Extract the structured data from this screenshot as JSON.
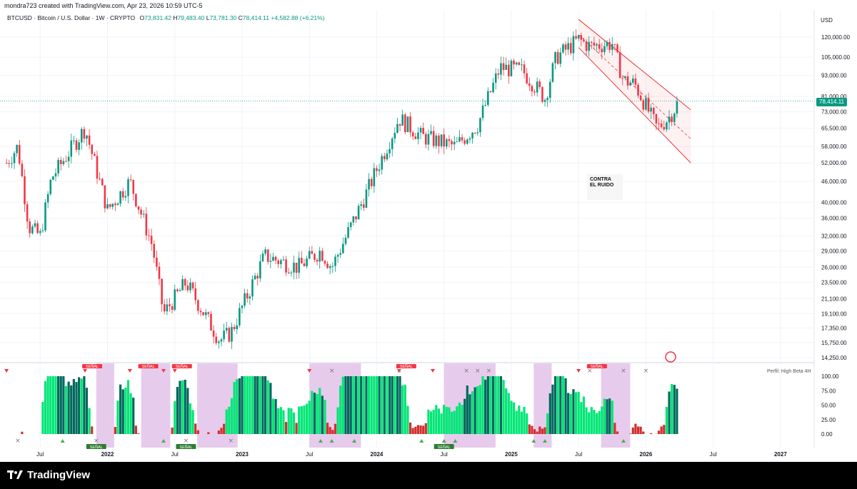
{
  "header": {
    "text": "mondra723 created with TradingView.com, Apr 23, 2026 10:59 UTC-5"
  },
  "legend": {
    "symbol": "BTCUSD · Bitcoin / U.S. Dollar · 1W · CRYPTO",
    "open_label": "O",
    "open": "73,831.42",
    "high_label": "H",
    "high": "79,483.40",
    "low_label": "L",
    "low": "73,781.30",
    "close_label": "C",
    "close": "78,414.11",
    "change": "+4,582.88 (+6.21%)"
  },
  "currency": "USD",
  "last_price": "78,414.11",
  "indicator_label": "Perfil: High Beta 4H",
  "watermark": {
    "line1": "CONTRA",
    "line2": "EL RUIDO"
  },
  "footer": {
    "brand": "TradingView"
  },
  "colors": {
    "up": "#089981",
    "down": "#f23645",
    "channel": "#e53935",
    "highlight": "#e1bee7",
    "osc_dark": "#00695c",
    "osc_light": "#00e676",
    "osc_red": "#d32f2f"
  },
  "chart_data": [
    {
      "type": "candlestick",
      "title": "BTCUSD · Bitcoin / U.S. Dollar · 1W · CRYPTO",
      "y_scale": "log",
      "y_ticks": [
        "120,000.00",
        "105,000.00",
        "93,000.00",
        "81,000.00",
        "73,000.00",
        "65,500.00",
        "58,000.00",
        "52,000.00",
        "46,000.00",
        "40,000.00",
        "36,000.00",
        "32,000.00",
        "29,000.00",
        "26,000.00",
        "23,500.00",
        "21,100.00",
        "19,100.00",
        "17,350.00",
        "15,750.00",
        "14,250.00"
      ],
      "x_ticks": [
        "Jul",
        "2022",
        "Jul",
        "2023",
        "Jul",
        "2024",
        "Jul",
        "2025",
        "Jul",
        "2026",
        "Jul",
        "2027"
      ],
      "anchors": [
        {
          "date": "2021-04",
          "price": 52000
        },
        {
          "date": "2021-05",
          "price": 58000
        },
        {
          "date": "2021-06",
          "price": 34000
        },
        {
          "date": "2021-07",
          "price": 32000
        },
        {
          "date": "2021-08",
          "price": 47000
        },
        {
          "date": "2021-11",
          "price": 65500
        },
        {
          "date": "2022-01",
          "price": 38000
        },
        {
          "date": "2022-03",
          "price": 46000
        },
        {
          "date": "2022-05",
          "price": 30000
        },
        {
          "date": "2022-06",
          "price": 19100
        },
        {
          "date": "2022-08",
          "price": 23500
        },
        {
          "date": "2022-11",
          "price": 16000
        },
        {
          "date": "2022-12",
          "price": 16800
        },
        {
          "date": "2023-03",
          "price": 28000
        },
        {
          "date": "2023-06",
          "price": 26000
        },
        {
          "date": "2023-08",
          "price": 29000
        },
        {
          "date": "2023-09",
          "price": 26000
        },
        {
          "date": "2023-12",
          "price": 42000
        },
        {
          "date": "2024-03",
          "price": 70000
        },
        {
          "date": "2024-05",
          "price": 62000
        },
        {
          "date": "2024-08",
          "price": 58000
        },
        {
          "date": "2024-10",
          "price": 67000
        },
        {
          "date": "2024-12",
          "price": 98000
        },
        {
          "date": "2025-02",
          "price": 96000
        },
        {
          "date": "2025-04",
          "price": 80000
        },
        {
          "date": "2025-05",
          "price": 105000
        },
        {
          "date": "2025-07",
          "price": 118000
        },
        {
          "date": "2025-08",
          "price": 113000
        },
        {
          "date": "2025-10",
          "price": 115000
        },
        {
          "date": "2025-11",
          "price": 90000
        },
        {
          "date": "2025-12",
          "price": 88000
        },
        {
          "date": "2026-02",
          "price": 65500
        },
        {
          "date": "2026-03",
          "price": 70000
        },
        {
          "date": "2026-04",
          "price": 78414
        }
      ],
      "last_close": 78414.11,
      "channel": {
        "upper": [
          {
            "date": "2025-07",
            "price": 135000
          },
          {
            "date": "2026-05",
            "price": 74000
          }
        ],
        "middle": [
          {
            "date": "2025-07",
            "price": 122000
          },
          {
            "date": "2026-05",
            "price": 61000
          }
        ],
        "lower": [
          {
            "date": "2025-07",
            "price": 112000
          },
          {
            "date": "2026-05",
            "price": 52000
          }
        ]
      }
    },
    {
      "type": "bar",
      "title": "Perfil: High Beta 4H",
      "y_ticks": [
        "100.00",
        "75.00",
        "50.00",
        "25.00",
        "0.00"
      ],
      "ylim": [
        0,
        100
      ],
      "tags": [
        "SEÑAL",
        "SEÑAL",
        "SEÑAL",
        "SEÑAL",
        "SEÑAL",
        "SEÑAL",
        "SEÑAL",
        "SEÑAL"
      ]
    }
  ]
}
